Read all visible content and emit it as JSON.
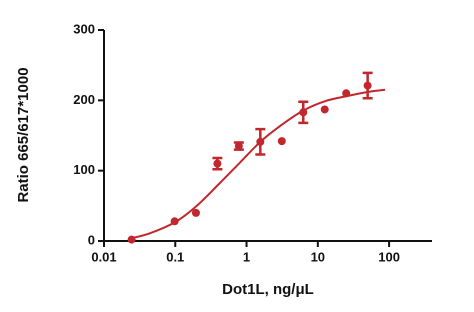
{
  "chart_data": {
    "type": "scatter",
    "xlabel": "Dot1L, ng/μL",
    "ylabel": "Ratio 665/617*1000",
    "x": [
      0.0244,
      0.098,
      0.195,
      0.39,
      0.78,
      1.56,
      3.125,
      6.25,
      12.5,
      25,
      50
    ],
    "values": [
      2,
      28,
      40,
      110,
      135,
      141,
      142,
      183,
      187,
      210,
      221
    ],
    "errors": [
      null,
      null,
      null,
      8,
      5,
      18,
      null,
      15,
      null,
      null,
      18
    ],
    "fit": {
      "x": [
        0.022,
        0.044,
        0.1,
        0.2,
        0.4,
        0.8,
        1.6,
        3.2,
        6.4,
        12.8,
        25.6,
        51.2,
        88
      ],
      "values": [
        3,
        11,
        27,
        50,
        80,
        111,
        142,
        166,
        186,
        199,
        206,
        212,
        215
      ]
    },
    "color": "#c1272d",
    "xscale": "log",
    "xlim": [
      0.01,
      400
    ],
    "ylim": [
      0,
      300
    ],
    "xticks": [
      0.01,
      0.1,
      1,
      10,
      100
    ],
    "yticks": [
      0,
      100,
      200,
      300
    ]
  }
}
